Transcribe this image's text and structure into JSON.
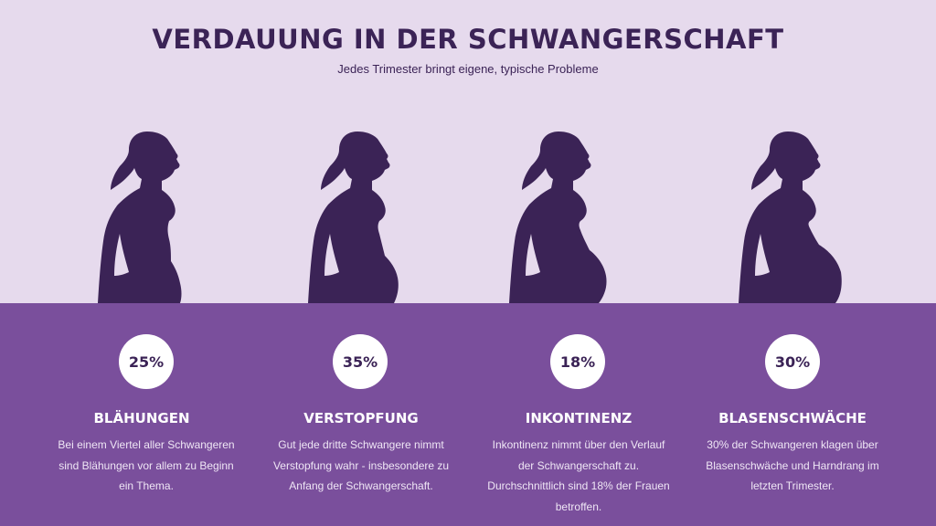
{
  "header": {
    "title": "VERDAUUNG IN DER SCHWANGERSCHAFT",
    "subtitle": "Jedes Trimester bringt eigene, typische Probleme"
  },
  "colors": {
    "top_background": "#e6daed",
    "bottom_background": "#7a4f9c",
    "silhouette": "#3b2356",
    "title": "#3b2356",
    "badge": "#ffffff"
  },
  "columns": [
    {
      "percent": "25%",
      "heading": "BLÄHUNGEN",
      "text": "Bei einem Viertel aller Schwangeren sind Blähungen vor allem zu Beginn ein Thema."
    },
    {
      "percent": "35%",
      "heading": "VERSTOPFUNG",
      "text": "Gut jede dritte Schwangere nimmt Verstopfung wahr - insbesondere zu Anfang der Schwangerschaft."
    },
    {
      "percent": "18%",
      "heading": "INKONTINENZ",
      "text": "Inkontinenz nimmt über den Verlauf der Schwangerschaft zu. Durchschnittlich sind 18% der Frauen betroffen."
    },
    {
      "percent": "30%",
      "heading": "BLASENSCHWÄCHE",
      "text": "30% der Schwangeren klagen über Blasenschwäche und Harndrang im letzten Trimester."
    }
  ]
}
